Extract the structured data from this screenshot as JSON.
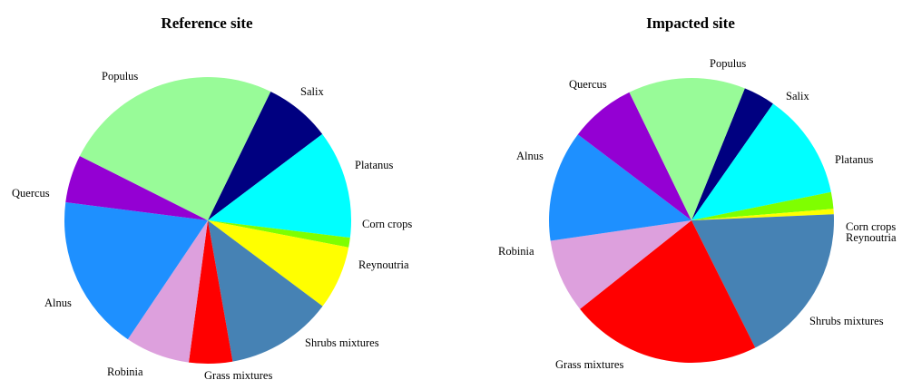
{
  "chart_data": [
    {
      "type": "pie",
      "title": "Reference site",
      "slices": [
        {
          "label": "Salix",
          "value": 7.5,
          "color": "#000080"
        },
        {
          "label": "Platanus",
          "value": 12.2,
          "color": "#00FFFF"
        },
        {
          "label": "Corn crops",
          "value": 1.1,
          "color": "#7FFF00"
        },
        {
          "label": "Reynoutria",
          "value": 7.2,
          "color": "#FFFF00"
        },
        {
          "label": "Shrubs mixtures",
          "value": 12.0,
          "color": "#4682B4"
        },
        {
          "label": "Grass mixtures",
          "value": 4.9,
          "color": "#FF0000"
        },
        {
          "label": "Robinia",
          "value": 7.3,
          "color": "#DDA0DD"
        },
        {
          "label": "Alnus",
          "value": 17.6,
          "color": "#1E90FF"
        },
        {
          "label": "Quercus",
          "value": 5.4,
          "color": "#9400D3"
        },
        {
          "label": "Populus",
          "value": 24.8,
          "color": "#98FB98"
        }
      ]
    },
    {
      "type": "pie",
      "title": "Impacted site",
      "slices": [
        {
          "label": "Salix",
          "value": 3.6,
          "color": "#000080"
        },
        {
          "label": "Platanus",
          "value": 12.1,
          "color": "#00FFFF"
        },
        {
          "label": "Corn crops",
          "value": 1.9,
          "color": "#7FFF00"
        },
        {
          "label": "Reynoutria",
          "value": 0.6,
          "color": "#FFFF00"
        },
        {
          "label": "Shrubs mixtures",
          "value": 18.3,
          "color": "#4682B4"
        },
        {
          "label": "Grass mixtures",
          "value": 21.7,
          "color": "#FF0000"
        },
        {
          "label": "Robinia",
          "value": 8.4,
          "color": "#DDA0DD"
        },
        {
          "label": "Alnus",
          "value": 12.6,
          "color": "#1E90FF"
        },
        {
          "label": "Quercus",
          "value": 7.5,
          "color": "#9400D3"
        },
        {
          "label": "Populus",
          "value": 13.3,
          "color": "#98FB98"
        }
      ]
    }
  ]
}
